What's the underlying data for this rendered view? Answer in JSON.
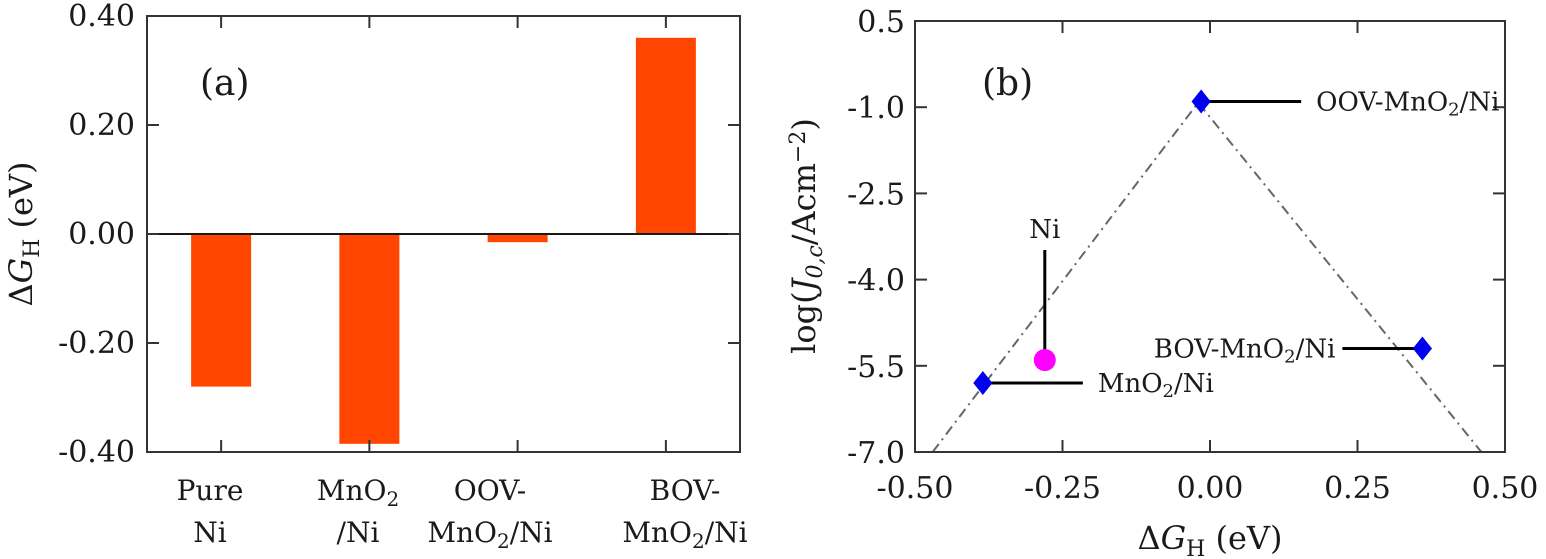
{
  "chart_data": [
    {
      "type": "bar",
      "panel_label": "(a)",
      "ylabel": {
        "delta": "Δ",
        "G": "G",
        "sub": "H",
        "unit": "(eV)"
      },
      "ylim": [
        -0.4,
        0.4
      ],
      "y_ticks": [
        {
          "value": 0.4,
          "label": "0.40"
        },
        {
          "value": 0.2,
          "label": "0.20"
        },
        {
          "value": 0.0,
          "label": "0.00"
        },
        {
          "value": -0.2,
          "label": "-0.20"
        },
        {
          "value": -0.4,
          "label": "-0.40"
        }
      ],
      "categories": [
        {
          "lines": [
            [
              {
                "t": "Pure"
              }
            ],
            [
              {
                "t": "Ni"
              }
            ]
          ]
        },
        {
          "lines": [
            [
              {
                "t": "MnO"
              },
              {
                "t": "2",
                "sub": true
              }
            ],
            [
              {
                "t": "/Ni"
              }
            ]
          ]
        },
        {
          "lines": [
            [
              {
                "t": "OOV-"
              }
            ],
            [
              {
                "t": "MnO"
              },
              {
                "t": "2",
                "sub": true
              },
              {
                "t": "/Ni"
              }
            ]
          ]
        },
        {
          "lines": [
            [
              {
                "t": "BOV-"
              }
            ],
            [
              {
                "t": "MnO"
              },
              {
                "t": "2",
                "sub": true
              },
              {
                "t": "/Ni"
              }
            ]
          ]
        }
      ],
      "values": [
        -0.28,
        -0.385,
        -0.015,
        0.36
      ],
      "bar_color": "#ff4500",
      "zero_line": true
    },
    {
      "type": "scatter",
      "panel_label": "(b)",
      "xlabel": {
        "delta": "Δ",
        "G": "G",
        "sub": "H",
        "unit": "(eV)"
      },
      "ylabel": {
        "pre": "log(",
        "J": "J",
        "sub": "0,c",
        "mid": "/Acm",
        "sup": "−2",
        "post": ")"
      },
      "xlim": [
        -0.5,
        0.5
      ],
      "ylim": [
        -7.0,
        0.5
      ],
      "x_ticks": [
        {
          "value": -0.5,
          "label": "-0.50"
        },
        {
          "value": -0.25,
          "label": "-0.25"
        },
        {
          "value": 0.0,
          "label": "0.00"
        },
        {
          "value": 0.25,
          "label": "0.25"
        },
        {
          "value": 0.5,
          "label": "0.50"
        }
      ],
      "y_ticks": [
        {
          "value": 0.5,
          "label": "0.5"
        },
        {
          "value": -1.0,
          "label": "-1.0"
        },
        {
          "value": -2.5,
          "label": "-2.5"
        },
        {
          "value": -4.0,
          "label": "-4.0"
        },
        {
          "value": -5.5,
          "label": "-5.5"
        },
        {
          "value": -7.0,
          "label": "-7.0"
        }
      ],
      "volcano_line": [
        [
          -0.47,
          -7.0
        ],
        [
          -0.02,
          -0.92
        ],
        [
          0.46,
          -7.0
        ]
      ],
      "points": [
        {
          "name": "MnO2/Ni",
          "x": -0.385,
          "y": -5.8,
          "marker": "diamond",
          "color": "#0000ee",
          "label": [
            {
              "t": "MnO"
            },
            {
              "t": "2",
              "sub": true
            },
            {
              "t": "/Ni"
            }
          ],
          "label_side": "right"
        },
        {
          "name": "OOV-MnO2/Ni",
          "x": -0.015,
          "y": -0.9,
          "marker": "diamond",
          "color": "#0000ee",
          "label": [
            {
              "t": "OOV-MnO"
            },
            {
              "t": "2",
              "sub": true
            },
            {
              "t": "/Ni"
            }
          ],
          "label_side": "right"
        },
        {
          "name": "BOV-MnO2/Ni",
          "x": 0.36,
          "y": -5.2,
          "marker": "diamond",
          "color": "#0000ee",
          "label": [
            {
              "t": "BOV-MnO"
            },
            {
              "t": "2",
              "sub": true
            },
            {
              "t": "/Ni"
            }
          ],
          "label_side": "left"
        },
        {
          "name": "Ni",
          "x": -0.28,
          "y": -5.4,
          "marker": "circle",
          "color": "#ff00ff",
          "label": [
            {
              "t": "Ni"
            }
          ],
          "label_side": "top"
        }
      ]
    }
  ]
}
